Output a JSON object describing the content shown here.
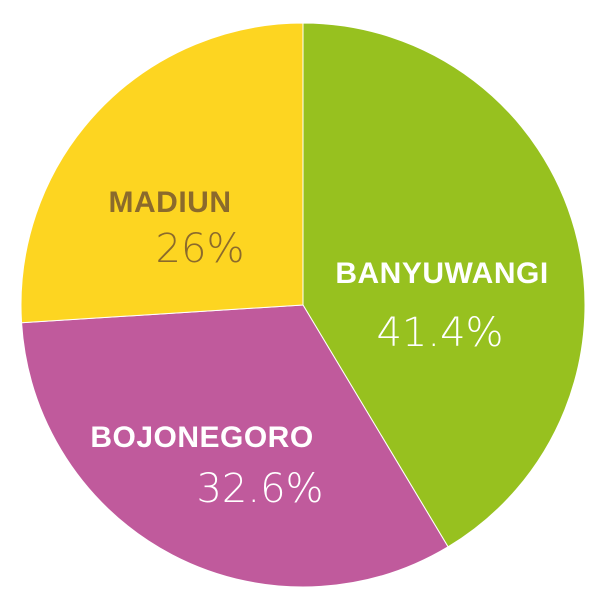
{
  "chart_data": {
    "type": "pie",
    "title": "",
    "start_angle_deg": 0,
    "direction": "clockwise",
    "slices": [
      {
        "label": "BANYUWANGI",
        "value": 41.4,
        "value_label": "41.4%",
        "color": "#97c11f",
        "text_color": "#ffffff"
      },
      {
        "label": "BOJONEGORO",
        "value": 32.6,
        "value_label": "32.6%",
        "color": "#c05a9c",
        "text_color": "#ffffff"
      },
      {
        "label": "MADIUN",
        "value": 26,
        "value_label": "26%",
        "color": "#fdd521",
        "text_color": "#8b6a2c"
      }
    ]
  }
}
